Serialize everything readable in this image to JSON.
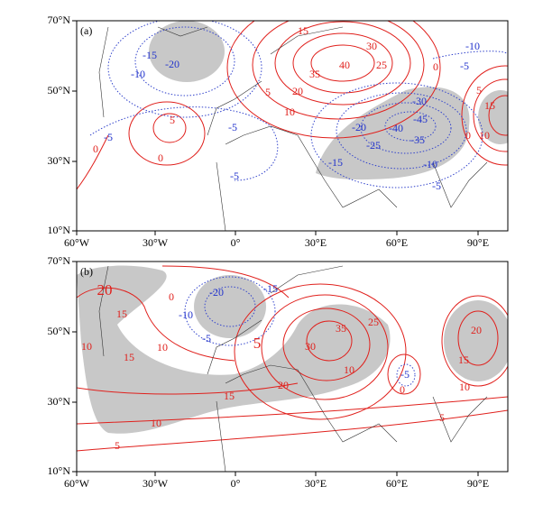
{
  "axes": {
    "lon_ticks": [
      "60°W",
      "30°W",
      "0°",
      "30°E",
      "60°E",
      "90°E"
    ],
    "lat_ticks": [
      "70°N",
      "50°N",
      "30°N",
      "10°N"
    ]
  },
  "panels": [
    {
      "label": "(a)",
      "positive_labels": [
        "15",
        "30",
        "40",
        "35",
        "25",
        "20",
        "5",
        "10",
        "0",
        "5",
        "15",
        "0",
        "10",
        "5",
        "0",
        "0"
      ],
      "negative_labels": [
        "-15",
        "-20",
        "-10",
        "-10",
        "-5",
        "-30",
        "-45",
        "-40",
        "-20",
        "-35",
        "-25",
        "-15",
        "-10",
        "-5",
        "-5",
        "-5",
        "-5"
      ]
    },
    {
      "label": "(b)",
      "positive_labels": [
        "20",
        "15",
        "10",
        "15",
        "0",
        "5",
        "10",
        "15",
        "20",
        "30",
        "35",
        "25",
        "10",
        "0",
        "20",
        "15",
        "10",
        "10",
        "5",
        "5"
      ],
      "negative_labels": [
        "-10",
        "-20",
        "-15",
        "-5",
        "-5"
      ]
    }
  ]
}
